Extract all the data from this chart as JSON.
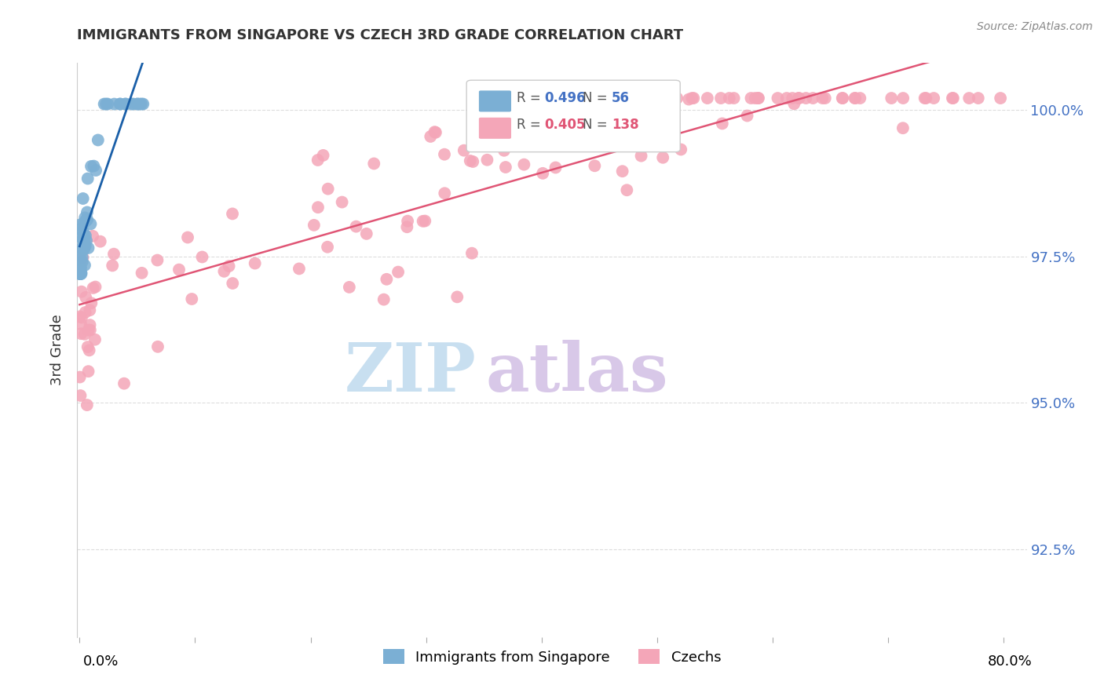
{
  "title": "IMMIGRANTS FROM SINGAPORE VS CZECH 3RD GRADE CORRELATION CHART",
  "source": "Source: ZipAtlas.com",
  "ylabel": "3rd Grade",
  "ylabel_right_ticks": [
    100.0,
    97.5,
    95.0,
    92.5
  ],
  "ylabel_right_labels": [
    "100.0%",
    "97.5%",
    "95.0%",
    "92.5%"
  ],
  "ymin": 91.0,
  "ymax": 100.8,
  "xmin": -0.002,
  "xmax": 0.82,
  "legend_blue_r": "0.496",
  "legend_blue_n": "56",
  "legend_pink_r": "0.405",
  "legend_pink_n": "138",
  "legend_label_blue": "Immigrants from Singapore",
  "legend_label_pink": "Czechs",
  "blue_color": "#7bafd4",
  "pink_color": "#f4a6b8",
  "blue_line_color": "#1a5fa8",
  "pink_line_color": "#e05575",
  "watermark_zip": "ZIP",
  "watermark_atlas": "atlas",
  "watermark_color_zip": "#c8dff0",
  "watermark_color_atlas": "#d8c8e8",
  "bg_color": "#ffffff",
  "grid_color": "#dddddd"
}
